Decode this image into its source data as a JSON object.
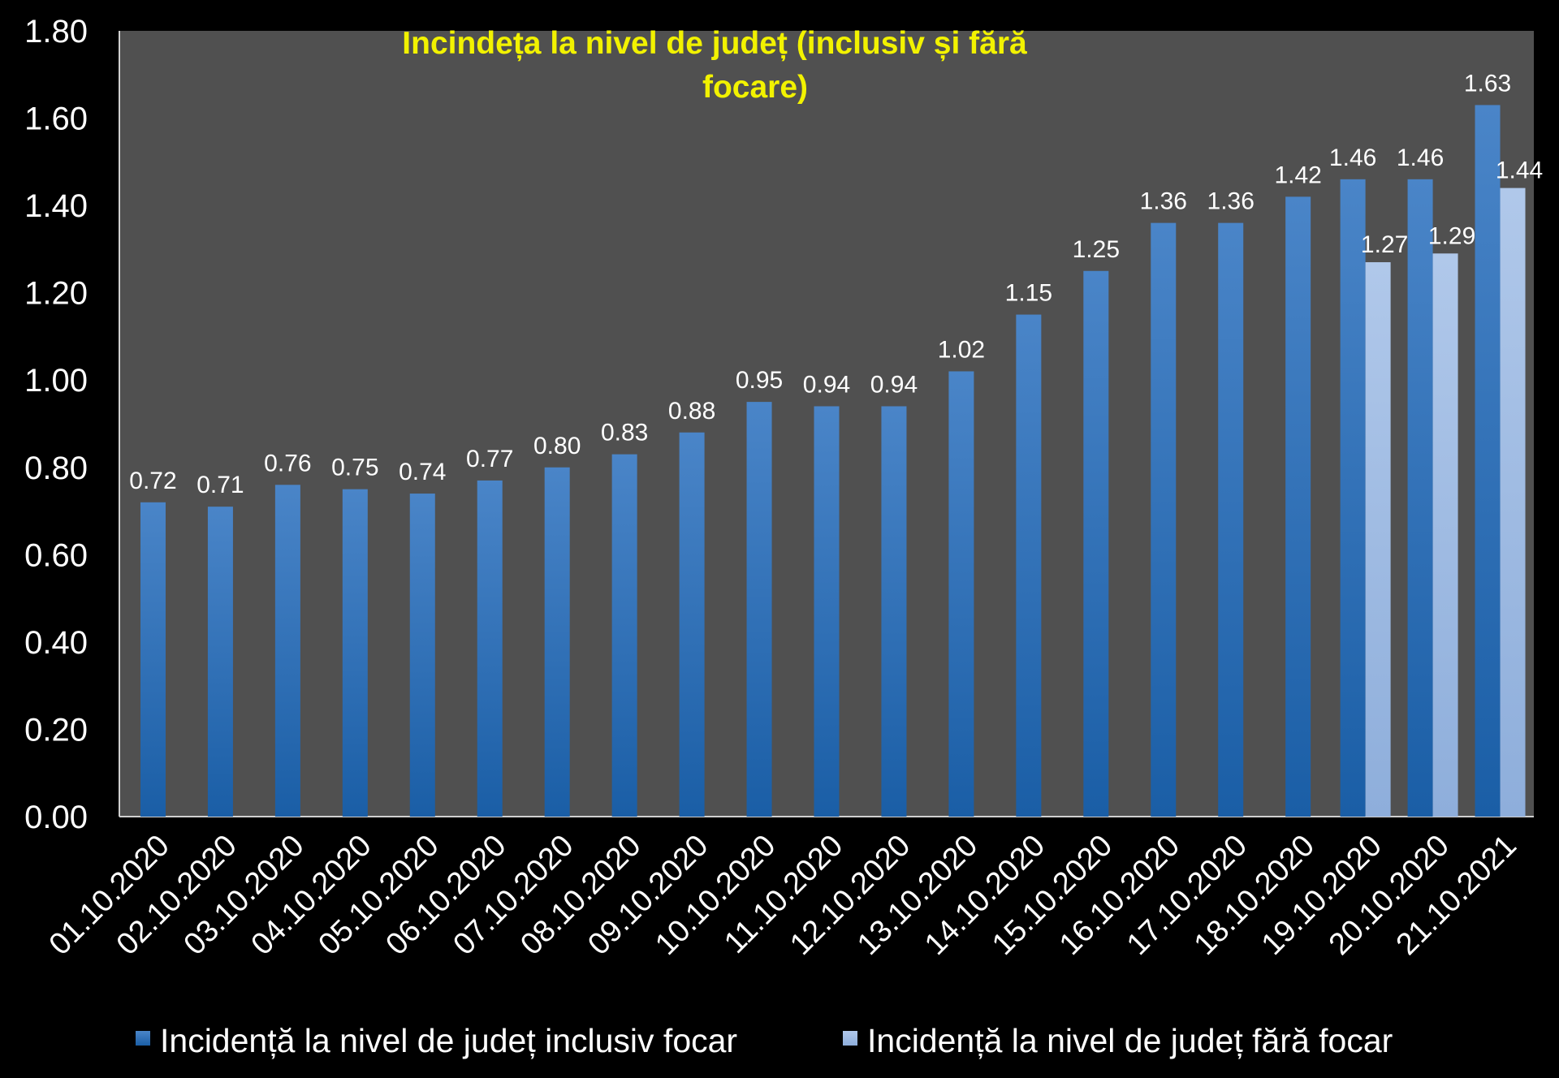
{
  "chart_data": {
    "type": "bar",
    "title_lines": [
      "Incindeța la nivel de județ (inclusiv și fără",
      "focare)"
    ],
    "xlabel": "",
    "ylabel": "",
    "ylim": [
      0,
      1.8
    ],
    "yticks": [
      "0.00",
      "0.20",
      "0.40",
      "0.60",
      "0.80",
      "1.00",
      "1.20",
      "1.40",
      "1.60",
      "1.80"
    ],
    "categories": [
      "01.10.2020",
      "02.10.2020",
      "03.10.2020",
      "04.10.2020",
      "05.10.2020",
      "06.10.2020",
      "07.10.2020",
      "08.10.2020",
      "09.10.2020",
      "10.10.2020",
      "11.10.2020",
      "12.10.2020",
      "13.10.2020",
      "14.10.2020",
      "15.10.2020",
      "16.10.2020",
      "17.10.2020",
      "18.10.2020",
      "19.10.2020",
      "20.10.2020",
      "21.10.2021"
    ],
    "series": [
      {
        "name": "Incidență la nivel de județ inclusiv focar",
        "color": "#2f6fb5",
        "values": [
          0.72,
          0.71,
          0.76,
          0.75,
          0.74,
          0.77,
          0.8,
          0.83,
          0.88,
          0.95,
          0.94,
          0.94,
          1.02,
          1.15,
          1.25,
          1.36,
          1.36,
          1.42,
          1.46,
          1.46,
          1.63
        ],
        "labels": [
          "0.72",
          "0.71",
          "0.76",
          "0.75",
          "0.74",
          "0.77",
          "0.80",
          "0.83",
          "0.88",
          "0.95",
          "0.94",
          "0.94",
          "1.02",
          "1.15",
          "1.25",
          "1.36",
          "1.36",
          "1.42",
          "1.46",
          "1.46",
          "1.63"
        ]
      },
      {
        "name": "Incidență la nivel de județ fără focar",
        "color": "#9bb8e0",
        "values": [
          null,
          null,
          null,
          null,
          null,
          null,
          null,
          null,
          null,
          null,
          null,
          null,
          null,
          null,
          null,
          null,
          null,
          null,
          1.27,
          1.29,
          1.44
        ],
        "labels": [
          null,
          null,
          null,
          null,
          null,
          null,
          null,
          null,
          null,
          null,
          null,
          null,
          null,
          null,
          null,
          null,
          null,
          null,
          "1.27",
          "1.29",
          "1.44"
        ]
      }
    ],
    "grid": false,
    "legend_position": "bottom",
    "colors": {
      "page_background": "#000000",
      "plot_background": "#505050",
      "text": "#ffffff",
      "title": "#f2f200"
    }
  }
}
